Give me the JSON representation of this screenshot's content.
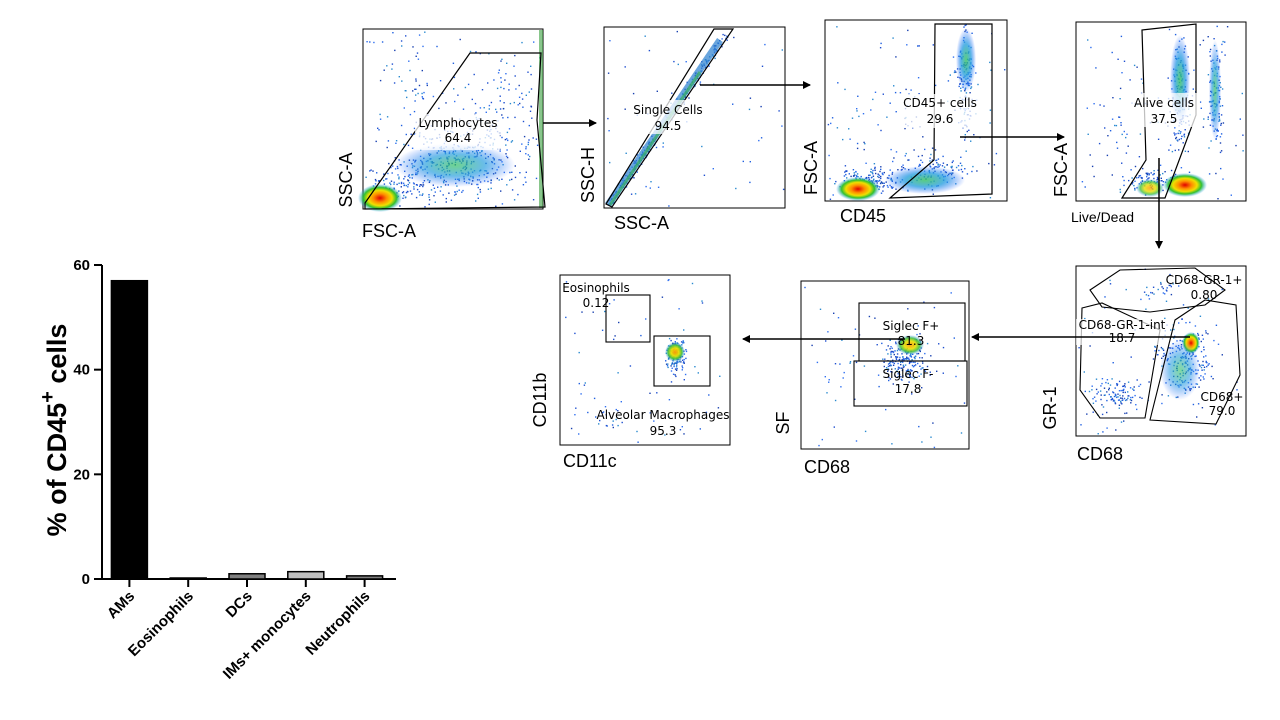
{
  "chart_data": [
    {
      "type": "bar",
      "categories": [
        "AMs",
        "Eosinophils",
        "DCs",
        "IMs+ monocytes",
        "Neutrophils"
      ],
      "values": [
        57,
        0.1,
        1.0,
        1.4,
        0.6
      ],
      "colors": [
        "#000000",
        "#000000",
        "#7f7f7f",
        "#bfbfbf",
        "#7f7f7f"
      ],
      "ylabel_main": "% of CD45",
      "ylabel_sup": "+",
      "ylabel_tail": " cells",
      "ylim": [
        0,
        60
      ],
      "yticks": [
        "0",
        "20",
        "40",
        "60"
      ],
      "xlabel": ""
    },
    {
      "type": "scatter",
      "name": "flow-cytometry-gating",
      "panels": [
        {
          "id": "p1",
          "xlabel": "FSC-A",
          "ylabel": "SSC-A",
          "gate_label": "Lymphocytes",
          "gate_value": "64.4"
        },
        {
          "id": "p2",
          "xlabel": "SSC-A",
          "ylabel": "SSC-H",
          "gate_label": "Single Cells",
          "gate_value": "94.5"
        },
        {
          "id": "p3",
          "xlabel": "CD45",
          "ylabel": "FSC-A",
          "gate_label": "CD45+ cells",
          "gate_value": "29.6"
        },
        {
          "id": "p4",
          "xlabel": "Live/Dead",
          "ylabel": "FSC-A",
          "gate_label": "Alive cells",
          "gate_value": "37.5"
        },
        {
          "id": "p5",
          "xlabel": "CD68",
          "ylabel": "GR-1",
          "gates": [
            {
              "label": "CD68-GR-1+",
              "value": "0.80"
            },
            {
              "label": "CD68-GR-1-int",
              "value": "18.7"
            },
            {
              "label": "CD68+",
              "value": "79.0"
            }
          ]
        },
        {
          "id": "p6",
          "xlabel": "CD68",
          "ylabel": "SF",
          "gates": [
            {
              "label": "Siglec F+",
              "value": "81.3"
            },
            {
              "label": "Siglec F-",
              "value": "17.8"
            }
          ]
        },
        {
          "id": "p7",
          "xlabel": "CD11c",
          "ylabel": "CD11b",
          "gates": [
            {
              "label": "Eosinophils",
              "value": "0.12"
            },
            {
              "label": "Alveolar Macrophages",
              "value": "95.3"
            }
          ]
        }
      ]
    }
  ]
}
